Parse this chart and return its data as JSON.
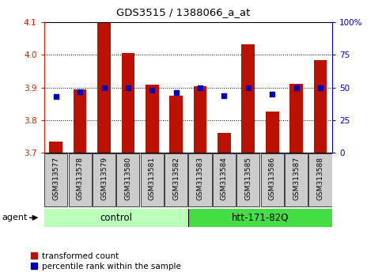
{
  "title": "GDS3515 / 1388066_a_at",
  "samples": [
    "GSM313577",
    "GSM313578",
    "GSM313579",
    "GSM313580",
    "GSM313581",
    "GSM313582",
    "GSM313583",
    "GSM313584",
    "GSM313585",
    "GSM313586",
    "GSM313587",
    "GSM313588"
  ],
  "bar_values": [
    3.735,
    3.895,
    4.098,
    4.005,
    3.908,
    3.875,
    3.903,
    3.76,
    4.033,
    3.825,
    3.912,
    3.983
  ],
  "percentile_values": [
    43,
    47,
    50,
    50,
    48,
    46,
    50,
    44,
    50,
    45,
    50,
    50
  ],
  "y_min": 3.7,
  "y_max": 4.1,
  "y_ticks": [
    3.7,
    3.8,
    3.9,
    4.0,
    4.1
  ],
  "right_y_ticks": [
    0,
    25,
    50,
    75,
    100
  ],
  "bar_color": "#BB1100",
  "dot_color": "#0000BB",
  "bg_color": "#FFFFFF",
  "grid_color": "#000000",
  "n_control": 6,
  "n_treatment": 6,
  "control_label": "control",
  "treatment_label": "htt-171-82Q",
  "agent_label": "agent",
  "legend_bar_label": "transformed count",
  "legend_dot_label": "percentile rank within the sample",
  "control_color": "#BBFFBB",
  "treatment_color": "#44DD44",
  "left_axis_color": "#CC2200",
  "right_axis_color": "#0000CC",
  "title_color": "#000000",
  "xticklabel_bg": "#CCCCCC"
}
